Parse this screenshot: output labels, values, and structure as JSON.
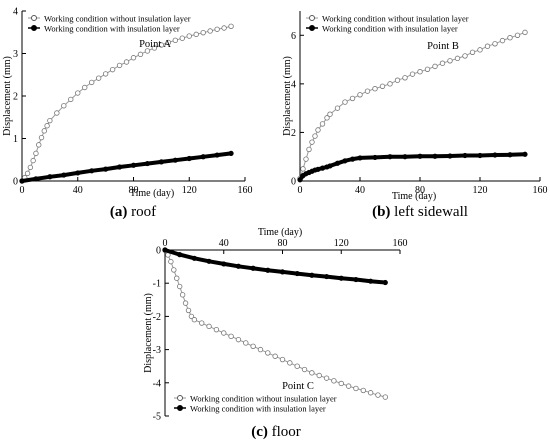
{
  "chart_data": [
    {
      "type": "scatter",
      "panel_label": "(a)",
      "caption": "roof",
      "annotation": "Point A",
      "xlabel": "Time (day)",
      "ylabel": "Displacement (mm)",
      "xlim": [
        0,
        160
      ],
      "ylim": [
        0,
        4
      ],
      "xticks": [
        "0",
        "40",
        "80",
        "120",
        "160"
      ],
      "yticks": [
        "0",
        "1",
        "2",
        "3",
        "4"
      ],
      "legend": "top-left",
      "series": [
        {
          "name": "Working condition without insulation layer",
          "marker": "open-circle",
          "x": [
            0,
            2,
            4,
            6,
            8,
            10,
            12,
            14,
            16,
            18,
            20,
            25,
            30,
            35,
            40,
            45,
            50,
            55,
            60,
            65,
            70,
            75,
            80,
            85,
            90,
            95,
            100,
            105,
            110,
            115,
            120,
            125,
            130,
            135,
            140,
            145,
            150
          ],
          "values": [
            0.0,
            0.08,
            0.18,
            0.32,
            0.48,
            0.65,
            0.85,
            1.02,
            1.18,
            1.3,
            1.42,
            1.6,
            1.77,
            1.92,
            2.07,
            2.2,
            2.32,
            2.42,
            2.52,
            2.62,
            2.72,
            2.8,
            2.9,
            2.98,
            3.06,
            3.13,
            3.2,
            3.26,
            3.31,
            3.36,
            3.41,
            3.45,
            3.49,
            3.53,
            3.57,
            3.6,
            3.64
          ]
        },
        {
          "name": "Working condition with insulation layer",
          "marker": "filled-circle",
          "x": [
            0,
            10,
            20,
            30,
            40,
            50,
            60,
            70,
            80,
            90,
            100,
            110,
            120,
            130,
            140,
            150
          ],
          "values": [
            0.0,
            0.05,
            0.1,
            0.14,
            0.19,
            0.24,
            0.28,
            0.33,
            0.37,
            0.41,
            0.45,
            0.49,
            0.53,
            0.57,
            0.61,
            0.65
          ]
        }
      ]
    },
    {
      "type": "scatter",
      "panel_label": "(b)",
      "caption": "left sidewall",
      "annotation": "Point B",
      "xlabel": "Time (day)",
      "ylabel": "Displacement (mm)",
      "xlim": [
        0,
        160
      ],
      "ylim": [
        0,
        7
      ],
      "xticks": [
        "0",
        "40",
        "80",
        "120",
        "160"
      ],
      "yticks": [
        "0",
        "2",
        "4",
        "6"
      ],
      "legend": "top-left",
      "series": [
        {
          "name": "Working condition without insulation layer",
          "marker": "open-circle",
          "x": [
            0,
            2,
            4,
            6,
            8,
            10,
            12,
            15,
            18,
            20,
            25,
            30,
            35,
            40,
            45,
            50,
            55,
            60,
            65,
            70,
            75,
            80,
            85,
            90,
            95,
            100,
            105,
            110,
            115,
            120,
            125,
            130,
            135,
            140,
            145,
            150
          ],
          "values": [
            0.1,
            0.5,
            0.9,
            1.3,
            1.6,
            1.85,
            2.1,
            2.35,
            2.6,
            2.75,
            3.0,
            3.25,
            3.4,
            3.55,
            3.7,
            3.8,
            3.9,
            4.0,
            4.15,
            4.25,
            4.4,
            4.5,
            4.6,
            4.72,
            4.85,
            4.95,
            5.05,
            5.15,
            5.3,
            5.4,
            5.55,
            5.65,
            5.78,
            5.9,
            6.0,
            6.12
          ]
        },
        {
          "name": "Working condition with insulation layer",
          "marker": "filled-circle",
          "x": [
            0,
            2,
            4,
            6,
            8,
            10,
            12,
            15,
            18,
            20,
            25,
            30,
            35,
            40,
            50,
            60,
            70,
            80,
            90,
            100,
            110,
            120,
            130,
            140,
            150
          ],
          "values": [
            0.05,
            0.22,
            0.3,
            0.35,
            0.4,
            0.45,
            0.48,
            0.53,
            0.58,
            0.62,
            0.73,
            0.83,
            0.9,
            0.95,
            0.97,
            1.0,
            1.0,
            1.02,
            1.02,
            1.03,
            1.05,
            1.05,
            1.07,
            1.08,
            1.1
          ]
        }
      ]
    },
    {
      "type": "scatter",
      "panel_label": "(c)",
      "caption": "floor",
      "annotation": "Point C",
      "xlabel": "Time (day)",
      "ylabel": "Displacement (mm)",
      "xlim": [
        0,
        160
      ],
      "ylim": [
        -5,
        0
      ],
      "xticks": [
        "0",
        "40",
        "80",
        "120",
        "160"
      ],
      "yticks": [
        "0",
        "-1",
        "-2",
        "-3",
        "-4",
        "-5"
      ],
      "legend": "bottom-right",
      "series": [
        {
          "name": "Working condition without insulation layer",
          "marker": "open-circle",
          "x": [
            0,
            2,
            4,
            6,
            8,
            10,
            12,
            14,
            16,
            18,
            20,
            25,
            30,
            35,
            40,
            45,
            50,
            55,
            60,
            65,
            70,
            75,
            80,
            85,
            90,
            95,
            100,
            105,
            110,
            115,
            120,
            125,
            130,
            135,
            140,
            145,
            150
          ],
          "values": [
            0.0,
            -0.15,
            -0.35,
            -0.6,
            -0.85,
            -1.1,
            -1.35,
            -1.6,
            -1.82,
            -2.0,
            -2.1,
            -2.2,
            -2.3,
            -2.4,
            -2.5,
            -2.6,
            -2.7,
            -2.8,
            -2.9,
            -3.0,
            -3.1,
            -3.2,
            -3.3,
            -3.4,
            -3.5,
            -3.6,
            -3.7,
            -3.78,
            -3.86,
            -3.94,
            -4.02,
            -4.1,
            -4.17,
            -4.23,
            -4.3,
            -4.37,
            -4.43
          ]
        },
        {
          "name": "Working condition with insulation layer",
          "marker": "filled-circle",
          "x": [
            0,
            10,
            20,
            30,
            40,
            50,
            60,
            70,
            80,
            90,
            100,
            110,
            120,
            130,
            140,
            150
          ],
          "values": [
            0.0,
            -0.14,
            -0.25,
            -0.34,
            -0.42,
            -0.49,
            -0.55,
            -0.61,
            -0.66,
            -0.71,
            -0.76,
            -0.8,
            -0.85,
            -0.89,
            -0.94,
            -0.98
          ]
        }
      ]
    }
  ]
}
